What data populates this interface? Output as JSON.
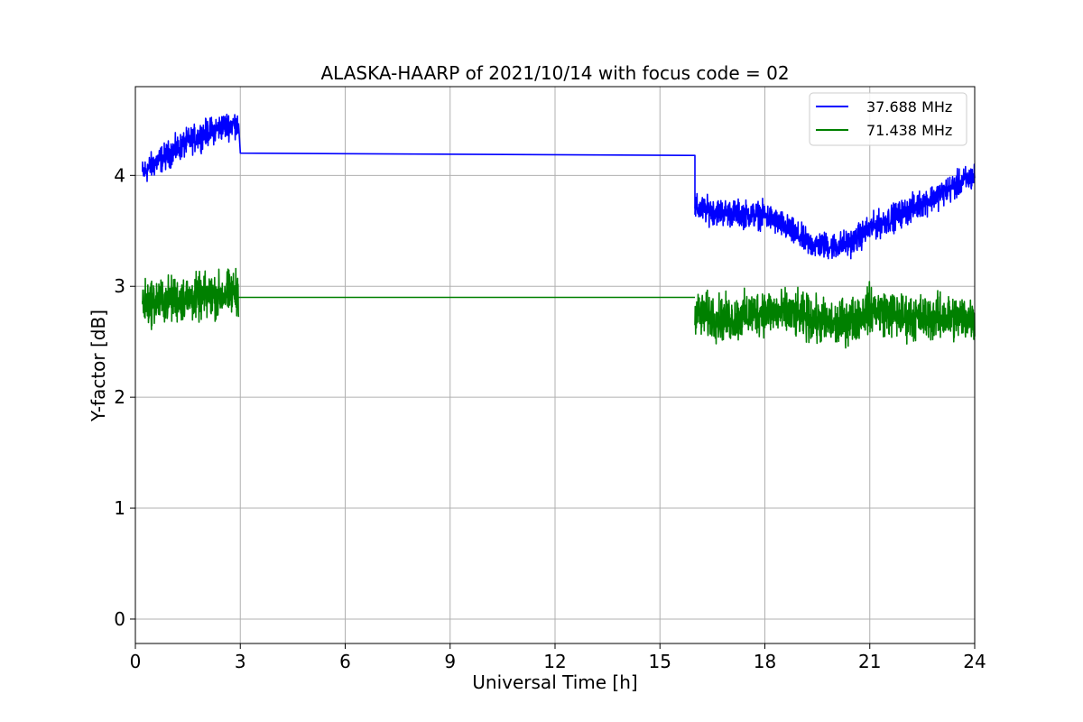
{
  "chart_data": {
    "type": "line",
    "title": "ALASKA-HAARP of 2021/10/14 with focus code = 02",
    "xlabel": "Universal Time [h]",
    "ylabel": "Y-factor [dB]",
    "xlim": [
      0,
      24
    ],
    "ylim": [
      -0.22,
      4.8
    ],
    "xticks": [
      0,
      3,
      6,
      9,
      12,
      15,
      18,
      21,
      24
    ],
    "yticks": [
      0,
      1,
      2,
      3,
      4
    ],
    "grid": true,
    "legend_position": "top-right",
    "series": [
      {
        "name": "37.688 MHz",
        "color": "#0000ff",
        "noise_amplitude": 0.13,
        "segments": [
          {
            "kind": "noisy",
            "points": [
              [
                0.2,
                4.02
              ],
              [
                0.6,
                4.12
              ],
              [
                1.0,
                4.2
              ],
              [
                1.5,
                4.3
              ],
              [
                2.0,
                4.38
              ],
              [
                2.5,
                4.44
              ],
              [
                2.95,
                4.47
              ]
            ]
          },
          {
            "kind": "flat",
            "points": [
              [
                2.95,
                4.47
              ],
              [
                3.0,
                4.2
              ],
              [
                16.0,
                4.18
              ],
              [
                16.0,
                3.7
              ]
            ]
          },
          {
            "kind": "noisy",
            "points": [
              [
                16.0,
                3.7
              ],
              [
                17.0,
                3.66
              ],
              [
                18.0,
                3.64
              ],
              [
                18.5,
                3.55
              ],
              [
                19.3,
                3.38
              ],
              [
                20.0,
                3.36
              ],
              [
                20.5,
                3.4
              ],
              [
                21.0,
                3.52
              ],
              [
                22.0,
                3.67
              ],
              [
                23.0,
                3.83
              ],
              [
                24.0,
                4.0
              ]
            ]
          }
        ]
      },
      {
        "name": "71.438 MHz",
        "color": "#008000",
        "noise_amplitude": 0.22,
        "segments": [
          {
            "kind": "noisy",
            "points": [
              [
                0.2,
                2.85
              ],
              [
                1.0,
                2.88
              ],
              [
                2.0,
                2.9
              ],
              [
                2.95,
                2.95
              ]
            ]
          },
          {
            "kind": "flat",
            "points": [
              [
                2.95,
                2.9
              ],
              [
                16.0,
                2.9
              ]
            ]
          },
          {
            "kind": "noisy",
            "points": [
              [
                16.0,
                2.75
              ],
              [
                17.0,
                2.7
              ],
              [
                18.0,
                2.78
              ],
              [
                19.0,
                2.73
              ],
              [
                20.0,
                2.65
              ],
              [
                20.5,
                2.7
              ],
              [
                21.0,
                2.8
              ],
              [
                22.0,
                2.72
              ],
              [
                23.0,
                2.72
              ],
              [
                24.0,
                2.72
              ]
            ]
          }
        ]
      }
    ]
  }
}
